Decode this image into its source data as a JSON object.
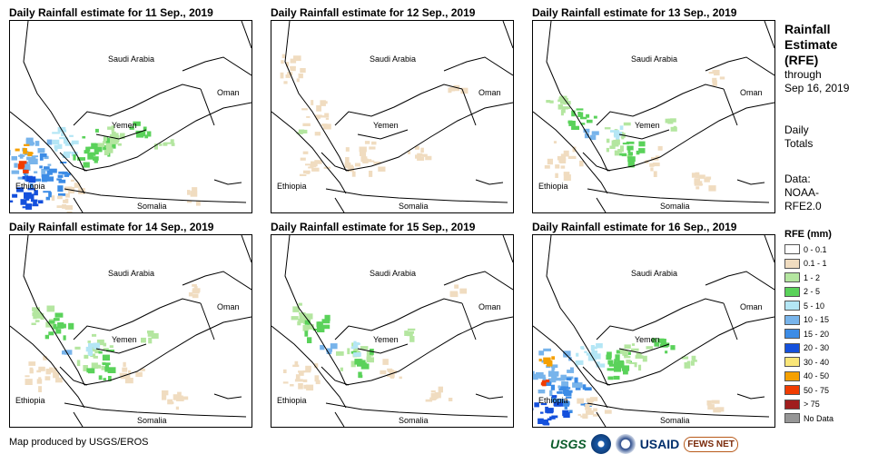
{
  "panels": [
    {
      "title": "Daily Rainfall estimate for 11 Sep., 2019",
      "intensity": "heavy"
    },
    {
      "title": "Daily Rainfall estimate for 12 Sep., 2019",
      "intensity": "light"
    },
    {
      "title": "Daily Rainfall estimate for 13 Sep., 2019",
      "intensity": "moderate"
    },
    {
      "title": "Daily Rainfall estimate for 14 Sep., 2019",
      "intensity": "moderate"
    },
    {
      "title": "Daily Rainfall estimate for 15 Sep., 2019",
      "intensity": "moderate"
    },
    {
      "title": "Daily Rainfall estimate for 16 Sep., 2019",
      "intensity": "heavy"
    }
  ],
  "map_labels": {
    "saudi": "Saudi Arabia",
    "oman": "Oman",
    "yemen": "Yemen",
    "ethiopia": "Ethiopia",
    "somalia": "Somalia"
  },
  "sidebar": {
    "title_line1": "Rainfall",
    "title_line2": "Estimate",
    "title_line3": "(RFE)",
    "through": "through",
    "date": "Sep 16, 2019",
    "totals_line1": "Daily",
    "totals_line2": "Totals",
    "data_line1": "Data:",
    "data_line2": "NOAA-",
    "data_line3": "RFE2.0"
  },
  "legend": {
    "title": "RFE (mm)",
    "items": [
      {
        "label": "0 - 0.1",
        "color": "#ffffff"
      },
      {
        "label": "0.1 - 1",
        "color": "#f0dcc0"
      },
      {
        "label": "1 - 2",
        "color": "#b4e6a0"
      },
      {
        "label": "2 - 5",
        "color": "#5ad25a"
      },
      {
        "label": "5 - 10",
        "color": "#b4e6f5"
      },
      {
        "label": "10 - 15",
        "color": "#78b4eb"
      },
      {
        "label": "15 - 20",
        "color": "#3c8ce6"
      },
      {
        "label": "20 - 30",
        "color": "#1450dc"
      },
      {
        "label": "30 - 40",
        "color": "#fae678"
      },
      {
        "label": "40 - 50",
        "color": "#f5a000"
      },
      {
        "label": "50 - 75",
        "color": "#f03c00"
      },
      {
        "label": "> 75",
        "color": "#a01e1e"
      },
      {
        "label": "No Data",
        "color": "#969696"
      }
    ]
  },
  "credit": "Map produced by USGS/EROS",
  "logos": {
    "usgs": "USGS",
    "usaid": "USAID",
    "fews": "FEWS NET"
  }
}
